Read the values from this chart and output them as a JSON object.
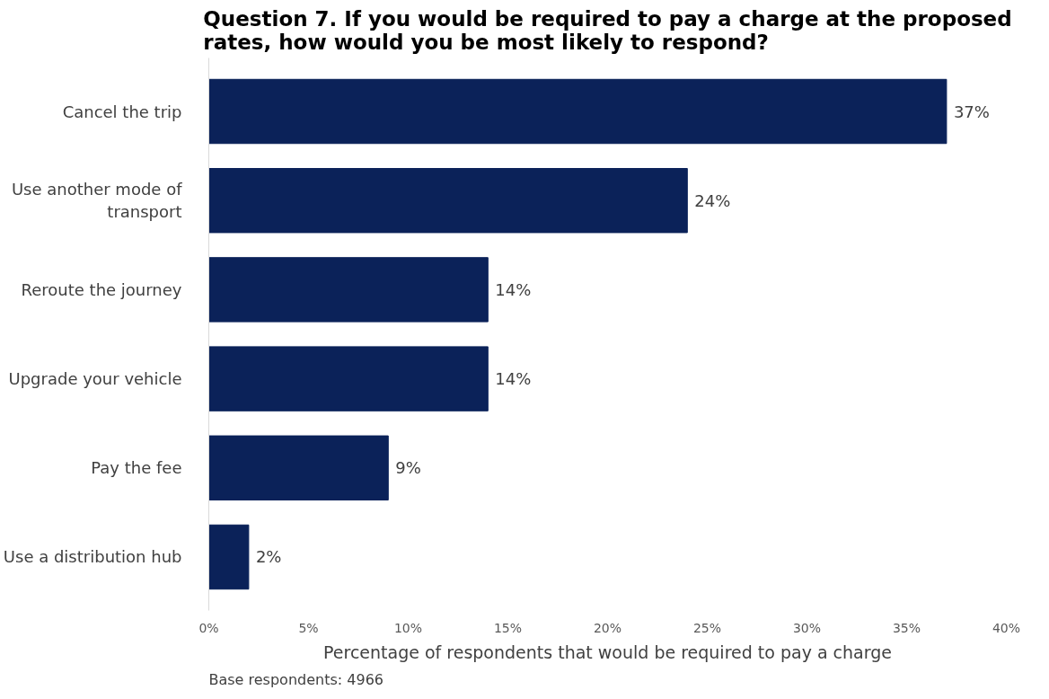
{
  "chart_data": {
    "type": "bar",
    "orientation": "horizontal",
    "title": "Question 7. If you would be required to pay a charge at the proposed rates, how would you be most likely to respond?",
    "categories": [
      "Cancel the trip",
      "Use another mode of transport",
      "Reroute the journey",
      "Upgrade your vehicle",
      "Pay the fee",
      "Use a distribution hub"
    ],
    "values": [
      37,
      24,
      14,
      14,
      9,
      2
    ],
    "value_labels": [
      "37%",
      "24%",
      "14%",
      "14%",
      "9%",
      "2%"
    ],
    "color": "#0b2259",
    "xlim": [
      0,
      40
    ],
    "xticks": [
      {
        "value": 0,
        "label": "0%"
      },
      {
        "value": 5,
        "label": "5%"
      },
      {
        "value": 10,
        "label": "10%"
      },
      {
        "value": 15,
        "label": "15%"
      },
      {
        "value": 20,
        "label": "20%"
      },
      {
        "value": 25,
        "label": "25%"
      },
      {
        "value": 30,
        "label": "30%"
      },
      {
        "value": 35,
        "label": "35%"
      },
      {
        "value": 40,
        "label": "40%"
      }
    ],
    "xlabel": "Percentage of respondents that would be required to pay a charge",
    "grid": false,
    "annotations": [
      "Base respondents: 4966"
    ]
  }
}
